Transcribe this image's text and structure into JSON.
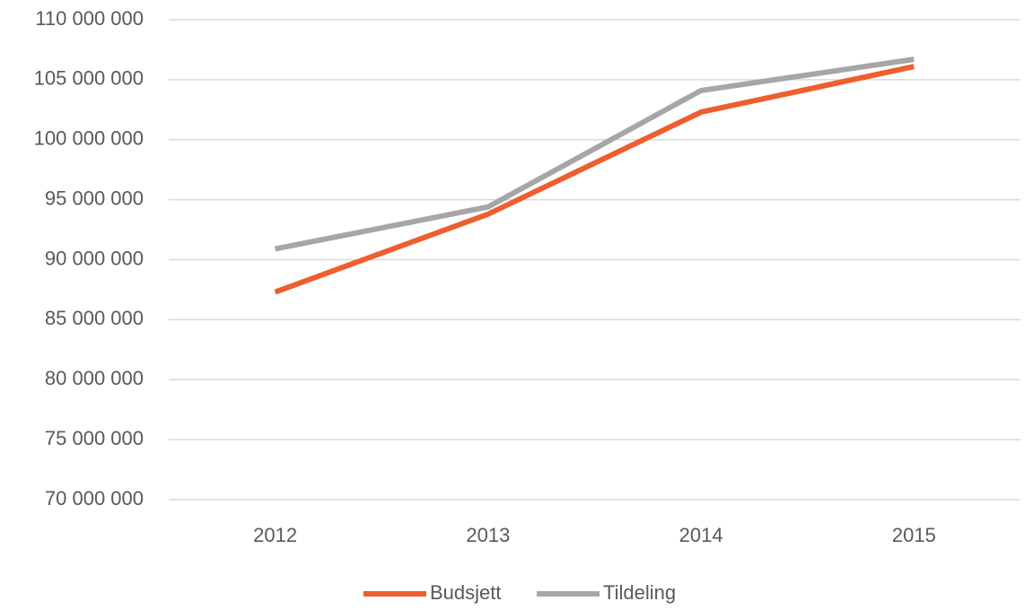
{
  "chart_data": {
    "type": "line",
    "categories": [
      "2012",
      "2013",
      "2014",
      "2015"
    ],
    "series": [
      {
        "name": "Budsjett",
        "color": "#ed5f2e",
        "values": [
          87300000,
          93800000,
          102300000,
          106100000
        ]
      },
      {
        "name": "Tildeling",
        "color": "#a6a6a9",
        "values": [
          90900000,
          94400000,
          104100000,
          106700000
        ]
      }
    ],
    "ylim": [
      70000000,
      110000000
    ],
    "yticks": [
      {
        "value": 70000000,
        "label": "70 000 000"
      },
      {
        "value": 75000000,
        "label": "75 000 000"
      },
      {
        "value": 80000000,
        "label": "80 000 000"
      },
      {
        "value": 85000000,
        "label": "85 000 000"
      },
      {
        "value": 90000000,
        "label": "90 000 000"
      },
      {
        "value": 95000000,
        "label": "95 000 000"
      },
      {
        "value": 100000000,
        "label": "100 000 000"
      },
      {
        "value": 105000000,
        "label": "105 000 000"
      },
      {
        "value": 110000000,
        "label": "110 000 000"
      }
    ],
    "grid": true,
    "legend": "bottom"
  }
}
